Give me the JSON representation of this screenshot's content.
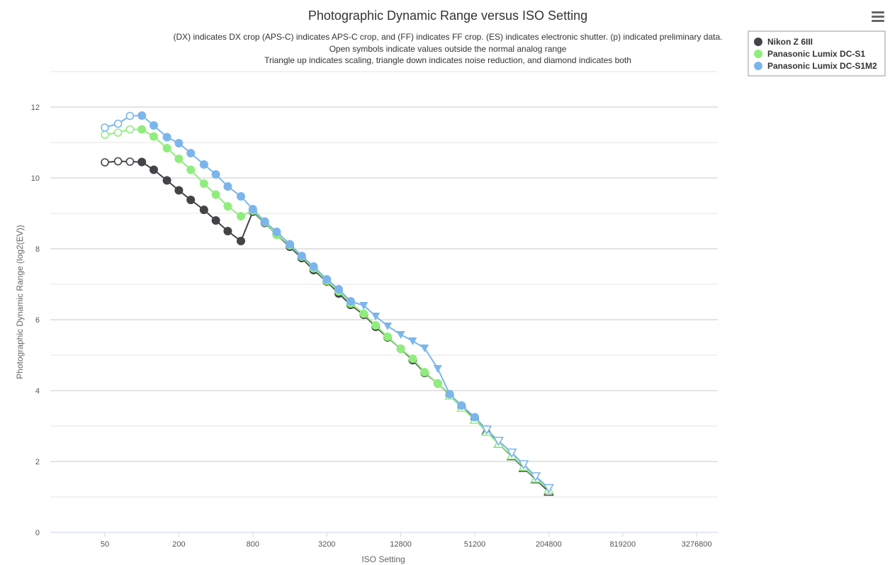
{
  "chart_data": {
    "type": "line",
    "title": "Photographic Dynamic Range versus ISO Setting",
    "subtitle": [
      "(DX) indicates DX crop (APS-C) indicates APS-C crop, and (FF) indicates FF crop. (ES) indicates electronic shutter. (p) indicated preliminary data.",
      "Open symbols indicate values outside the normal analog range",
      "Triangle up indicates scaling, triangle down indicates noise reduction, and diamond indicates both"
    ],
    "xlabel": "ISO Setting",
    "ylabel": "Photographic Dynamic Range (log2(EV))",
    "x_scale": "log2",
    "x_ticks": [
      50,
      200,
      800,
      3200,
      12800,
      51200,
      204800,
      819200,
      3276800
    ],
    "x_tick_labels": [
      "50",
      "200",
      "800",
      "3200",
      "12800",
      "51200",
      "204800",
      "819200",
      "3276800"
    ],
    "ylim": [
      0,
      13
    ],
    "y_ticks": [
      0,
      2,
      4,
      6,
      8,
      10,
      12
    ],
    "y_tick_labels": [
      "0",
      "2",
      "4",
      "6",
      "8",
      "10",
      "12"
    ],
    "grid": true,
    "legend_position": "top-right",
    "series": [
      {
        "name": "Nikon Z 6III",
        "color": "#434348",
        "points": [
          {
            "x": 50,
            "y": 10.44,
            "m": "open"
          },
          {
            "x": 64,
            "y": 10.47,
            "m": "open"
          },
          {
            "x": 80,
            "y": 10.46,
            "m": "open"
          },
          {
            "x": 100,
            "y": 10.45,
            "m": "circle"
          },
          {
            "x": 125,
            "y": 10.23,
            "m": "circle"
          },
          {
            "x": 160,
            "y": 9.93,
            "m": "circle"
          },
          {
            "x": 200,
            "y": 9.65,
            "m": "circle"
          },
          {
            "x": 250,
            "y": 9.38,
            "m": "circle"
          },
          {
            "x": 320,
            "y": 9.1,
            "m": "circle"
          },
          {
            "x": 400,
            "y": 8.8,
            "m": "circle"
          },
          {
            "x": 500,
            "y": 8.5,
            "m": "circle"
          },
          {
            "x": 640,
            "y": 8.22,
            "m": "circle"
          },
          {
            "x": 800,
            "y": 9.05,
            "m": "circle"
          },
          {
            "x": 1000,
            "y": 8.73,
            "m": "circle"
          },
          {
            "x": 1250,
            "y": 8.4,
            "m": "circle"
          },
          {
            "x": 1600,
            "y": 8.06,
            "m": "circle"
          },
          {
            "x": 2000,
            "y": 7.74,
            "m": "circle"
          },
          {
            "x": 2500,
            "y": 7.4,
            "m": "circle"
          },
          {
            "x": 3200,
            "y": 7.08,
            "m": "circle"
          },
          {
            "x": 4000,
            "y": 6.74,
            "m": "circle"
          },
          {
            "x": 5000,
            "y": 6.42,
            "m": "circle"
          },
          {
            "x": 6400,
            "y": 6.14,
            "m": "circle"
          },
          {
            "x": 8000,
            "y": 5.8,
            "m": "circle"
          },
          {
            "x": 10000,
            "y": 5.5,
            "m": "circle"
          },
          {
            "x": 12800,
            "y": 5.18,
            "m": "circle"
          },
          {
            "x": 16000,
            "y": 4.86,
            "m": "circle"
          },
          {
            "x": 20000,
            "y": 4.5,
            "m": "circle"
          },
          {
            "x": 25600,
            "y": 4.2,
            "m": "circle"
          },
          {
            "x": 32000,
            "y": 3.88,
            "m": "circle"
          },
          {
            "x": 40000,
            "y": 3.55,
            "m": "circle"
          },
          {
            "x": 51200,
            "y": 3.22,
            "m": "circle"
          },
          {
            "x": 64000,
            "y": 2.88,
            "m": "tri-up-open"
          },
          {
            "x": 80000,
            "y": 2.5,
            "m": "tri-up-open"
          },
          {
            "x": 102400,
            "y": 2.15,
            "m": "tri-up-open"
          },
          {
            "x": 128000,
            "y": 1.82,
            "m": "tri-up-open"
          },
          {
            "x": 160000,
            "y": 1.5,
            "m": "tri-up-open"
          },
          {
            "x": 204800,
            "y": 1.15,
            "m": "tri-up-open"
          }
        ]
      },
      {
        "name": "Panasonic Lumix DC-S1",
        "color": "#90ed7d",
        "points": [
          {
            "x": 50,
            "y": 11.22,
            "m": "open"
          },
          {
            "x": 64,
            "y": 11.28,
            "m": "open"
          },
          {
            "x": 80,
            "y": 11.37,
            "m": "open"
          },
          {
            "x": 100,
            "y": 11.37,
            "m": "circle"
          },
          {
            "x": 125,
            "y": 11.17,
            "m": "circle"
          },
          {
            "x": 160,
            "y": 10.84,
            "m": "circle"
          },
          {
            "x": 200,
            "y": 10.54,
            "m": "circle"
          },
          {
            "x": 250,
            "y": 10.23,
            "m": "circle"
          },
          {
            "x": 320,
            "y": 9.84,
            "m": "circle"
          },
          {
            "x": 400,
            "y": 9.53,
            "m": "circle"
          },
          {
            "x": 500,
            "y": 9.2,
            "m": "circle"
          },
          {
            "x": 640,
            "y": 8.92,
            "m": "circle"
          },
          {
            "x": 800,
            "y": 9.08,
            "m": "circle"
          },
          {
            "x": 1000,
            "y": 8.75,
            "m": "circle"
          },
          {
            "x": 1250,
            "y": 8.4,
            "m": "circle"
          },
          {
            "x": 1600,
            "y": 8.1,
            "m": "circle"
          },
          {
            "x": 2000,
            "y": 7.78,
            "m": "circle"
          },
          {
            "x": 2500,
            "y": 7.45,
            "m": "circle"
          },
          {
            "x": 3200,
            "y": 7.1,
            "m": "circle"
          },
          {
            "x": 4000,
            "y": 6.8,
            "m": "circle"
          },
          {
            "x": 5000,
            "y": 6.46,
            "m": "circle"
          },
          {
            "x": 6400,
            "y": 6.17,
            "m": "circle"
          },
          {
            "x": 8000,
            "y": 5.84,
            "m": "circle"
          },
          {
            "x": 10000,
            "y": 5.52,
            "m": "circle"
          },
          {
            "x": 12800,
            "y": 5.18,
            "m": "circle"
          },
          {
            "x": 16000,
            "y": 4.9,
            "m": "circle"
          },
          {
            "x": 20000,
            "y": 4.52,
            "m": "circle"
          },
          {
            "x": 25600,
            "y": 4.2,
            "m": "circle"
          },
          {
            "x": 32000,
            "y": 3.86,
            "m": "tri-up-open"
          },
          {
            "x": 40000,
            "y": 3.52,
            "m": "tri-up-open"
          },
          {
            "x": 51200,
            "y": 3.18,
            "m": "tri-up-open"
          },
          {
            "x": 64000,
            "y": 2.84,
            "m": "tri-up-open"
          },
          {
            "x": 80000,
            "y": 2.5,
            "m": "tri-up-open"
          },
          {
            "x": 102400,
            "y": 2.17,
            "m": "tri-up-open"
          },
          {
            "x": 128000,
            "y": 1.85,
            "m": "tri-up-open"
          },
          {
            "x": 160000,
            "y": 1.52,
            "m": "tri-up-open"
          },
          {
            "x": 204800,
            "y": 1.2,
            "m": "tri-up-open"
          }
        ]
      },
      {
        "name": "Panasonic Lumix DC-S1M2",
        "color": "#7cb5ec",
        "points": [
          {
            "x": 50,
            "y": 11.42,
            "m": "open"
          },
          {
            "x": 64,
            "y": 11.53,
            "m": "open"
          },
          {
            "x": 80,
            "y": 11.75,
            "m": "open"
          },
          {
            "x": 100,
            "y": 11.76,
            "m": "circle"
          },
          {
            "x": 125,
            "y": 11.48,
            "m": "circle"
          },
          {
            "x": 160,
            "y": 11.15,
            "m": "circle"
          },
          {
            "x": 200,
            "y": 10.98,
            "m": "circle"
          },
          {
            "x": 250,
            "y": 10.7,
            "m": "circle"
          },
          {
            "x": 320,
            "y": 10.38,
            "m": "circle"
          },
          {
            "x": 400,
            "y": 10.1,
            "m": "circle"
          },
          {
            "x": 500,
            "y": 9.76,
            "m": "circle"
          },
          {
            "x": 640,
            "y": 9.48,
            "m": "circle"
          },
          {
            "x": 800,
            "y": 9.12,
            "m": "circle"
          },
          {
            "x": 1000,
            "y": 8.77,
            "m": "circle"
          },
          {
            "x": 1250,
            "y": 8.48,
            "m": "circle"
          },
          {
            "x": 1600,
            "y": 8.13,
            "m": "circle"
          },
          {
            "x": 2000,
            "y": 7.8,
            "m": "circle"
          },
          {
            "x": 2500,
            "y": 7.5,
            "m": "circle"
          },
          {
            "x": 3200,
            "y": 7.14,
            "m": "circle"
          },
          {
            "x": 4000,
            "y": 6.86,
            "m": "circle"
          },
          {
            "x": 5000,
            "y": 6.52,
            "m": "circle"
          },
          {
            "x": 6400,
            "y": 6.4,
            "m": "tri-down"
          },
          {
            "x": 8000,
            "y": 6.1,
            "m": "tri-down"
          },
          {
            "x": 10000,
            "y": 5.82,
            "m": "tri-down"
          },
          {
            "x": 12800,
            "y": 5.58,
            "m": "tri-down"
          },
          {
            "x": 16000,
            "y": 5.4,
            "m": "tri-down"
          },
          {
            "x": 20000,
            "y": 5.2,
            "m": "tri-down"
          },
          {
            "x": 25600,
            "y": 4.62,
            "m": "tri-down"
          },
          {
            "x": 32000,
            "y": 3.9,
            "m": "circle"
          },
          {
            "x": 40000,
            "y": 3.58,
            "m": "circle"
          },
          {
            "x": 51200,
            "y": 3.25,
            "m": "circle"
          },
          {
            "x": 64000,
            "y": 2.9,
            "m": "tri-down-open"
          },
          {
            "x": 80000,
            "y": 2.58,
            "m": "tri-down-open"
          },
          {
            "x": 102400,
            "y": 2.25,
            "m": "tri-down-open"
          },
          {
            "x": 128000,
            "y": 1.92,
            "m": "tri-down-open"
          },
          {
            "x": 160000,
            "y": 1.58,
            "m": "tri-down-open"
          },
          {
            "x": 204800,
            "y": 1.25,
            "m": "tri-down-open"
          }
        ]
      }
    ]
  }
}
